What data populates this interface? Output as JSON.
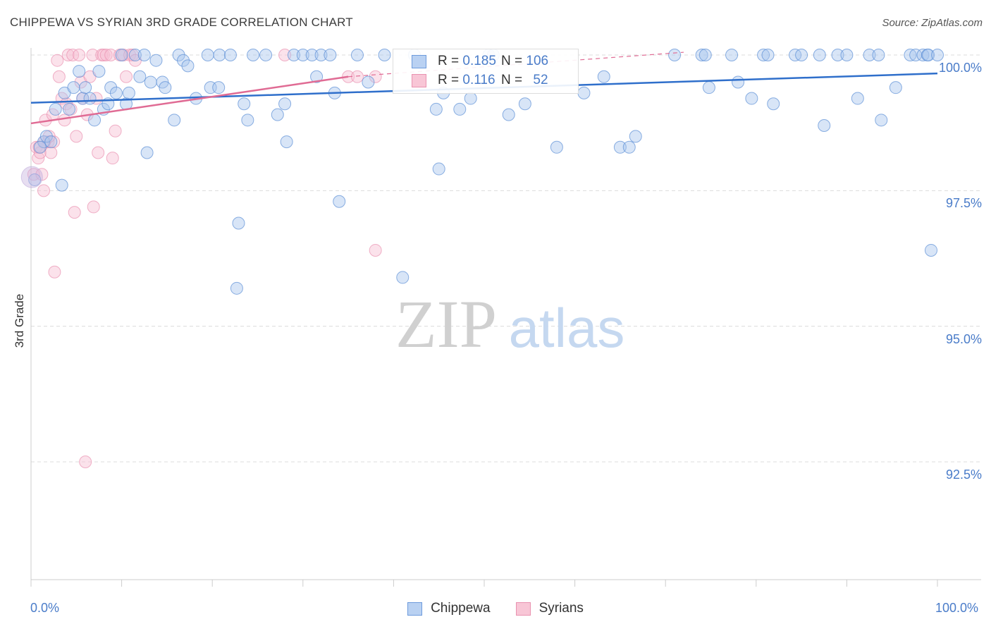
{
  "title": "CHIPPEWA VS SYRIAN 3RD GRADE CORRELATION CHART",
  "source": "Source: ZipAtlas.com",
  "watermark": {
    "zip": "ZIP",
    "atlas": "atlas"
  },
  "legend": {
    "chippewa": {
      "r_label": "R = ",
      "r_value": "0.185",
      "n_label": "N = ",
      "n_value": "106"
    },
    "syrians": {
      "r_label": "R = ",
      "r_value": "0.116",
      "n_label": "N = ",
      "n_value": "52"
    }
  },
  "bottom_legend": [
    "Chippewa",
    "Syrians"
  ],
  "colors": {
    "chippewa": "#5b8fd6",
    "chippewa_line": "#2f6fcb",
    "syrians": "#e992b0",
    "syrians_line": "#e06b94"
  },
  "chart_data": {
    "type": "scatter",
    "title": "CHIPPEWA VS SYRIAN 3RD GRADE CORRELATION CHART",
    "xlabel": "",
    "ylabel": "3rd Grade",
    "xlim": [
      0,
      100
    ],
    "ylim": [
      90.0,
      100.4
    ],
    "x_tick_labels": [
      "0.0%",
      "100.0%"
    ],
    "y_ticks": [
      92.5,
      95.0,
      97.5,
      100.0
    ],
    "y_tick_labels": [
      "92.5%",
      "95.0%",
      "97.5%",
      "100.0%"
    ],
    "grid": true,
    "legend_position": "top-center",
    "series": [
      {
        "name": "Chippewa",
        "r": 0.185,
        "n": 106,
        "trend": {
          "x": [
            0,
            100
          ],
          "y": [
            99.12,
            99.66
          ]
        },
        "points": [
          [
            0.4,
            97.7
          ],
          [
            1.4,
            98.4
          ],
          [
            1.7,
            98.5
          ],
          [
            2.2,
            98.4
          ],
          [
            2.7,
            99.0
          ],
          [
            3.4,
            97.6
          ],
          [
            3.7,
            99.3
          ],
          [
            4.2,
            99.0
          ],
          [
            4.7,
            99.4
          ],
          [
            5.3,
            99.7
          ],
          [
            5.7,
            99.2
          ],
          [
            6.0,
            99.4
          ],
          [
            6.5,
            99.2
          ],
          [
            7.0,
            98.8
          ],
          [
            7.5,
            99.7
          ],
          [
            8.0,
            99.0
          ],
          [
            8.5,
            99.1
          ],
          [
            8.8,
            99.4
          ],
          [
            9.4,
            99.3
          ],
          [
            10.0,
            100.0
          ],
          [
            10.5,
            99.1
          ],
          [
            10.8,
            99.3
          ],
          [
            11.5,
            100.0
          ],
          [
            12.0,
            99.6
          ],
          [
            12.5,
            100.0
          ],
          [
            12.8,
            98.2
          ],
          [
            13.2,
            99.5
          ],
          [
            13.8,
            99.9
          ],
          [
            14.5,
            99.5
          ],
          [
            14.8,
            99.4
          ],
          [
            15.8,
            98.8
          ],
          [
            16.3,
            100.0
          ],
          [
            16.8,
            99.9
          ],
          [
            17.3,
            99.8
          ],
          [
            18.2,
            99.2
          ],
          [
            19.5,
            100.0
          ],
          [
            19.8,
            99.4
          ],
          [
            20.7,
            99.4
          ],
          [
            20.8,
            100.0
          ],
          [
            22.0,
            100.0
          ],
          [
            22.7,
            95.7
          ],
          [
            22.9,
            96.9
          ],
          [
            23.5,
            99.1
          ],
          [
            24.5,
            100.0
          ],
          [
            23.9,
            98.8
          ],
          [
            25.9,
            100.0
          ],
          [
            27.2,
            98.9
          ],
          [
            28.0,
            99.1
          ],
          [
            28.2,
            98.4
          ],
          [
            29.0,
            100.0
          ],
          [
            30.0,
            100.0
          ],
          [
            31.0,
            100.0
          ],
          [
            31.5,
            99.6
          ],
          [
            32.0,
            100.0
          ],
          [
            33.0,
            100.0
          ],
          [
            33.5,
            99.3
          ],
          [
            34.0,
            97.3
          ],
          [
            36.0,
            100.0
          ],
          [
            37.2,
            99.5
          ],
          [
            39.0,
            100.0
          ],
          [
            41.0,
            95.9
          ],
          [
            42.3,
            100.0
          ],
          [
            44.7,
            99.0
          ],
          [
            45.0,
            97.9
          ],
          [
            45.5,
            99.3
          ],
          [
            47.3,
            99.0
          ],
          [
            48.5,
            99.2
          ],
          [
            50.5,
            100.0
          ],
          [
            51.0,
            100.0
          ],
          [
            52.7,
            98.9
          ],
          [
            54.5,
            99.1
          ],
          [
            58.0,
            98.3
          ],
          [
            61.0,
            99.3
          ],
          [
            63.2,
            99.6
          ],
          [
            65.0,
            98.3
          ],
          [
            66.0,
            98.3
          ],
          [
            66.7,
            98.5
          ],
          [
            71.0,
            100.0
          ],
          [
            74.0,
            100.0
          ],
          [
            74.4,
            100.0
          ],
          [
            74.8,
            99.4
          ],
          [
            77.3,
            100.0
          ],
          [
            78.0,
            99.5
          ],
          [
            79.5,
            99.2
          ],
          [
            80.8,
            100.0
          ],
          [
            81.3,
            100.0
          ],
          [
            81.9,
            99.1
          ],
          [
            84.3,
            100.0
          ],
          [
            85.0,
            100.0
          ],
          [
            87.0,
            100.0
          ],
          [
            87.5,
            98.7
          ],
          [
            89.0,
            100.0
          ],
          [
            90.0,
            100.0
          ],
          [
            91.2,
            99.2
          ],
          [
            92.5,
            100.0
          ],
          [
            93.5,
            100.0
          ],
          [
            93.8,
            98.8
          ],
          [
            95.4,
            99.4
          ],
          [
            97.0,
            100.0
          ],
          [
            97.6,
            100.0
          ],
          [
            98.4,
            100.0
          ],
          [
            98.9,
            100.0
          ],
          [
            99.0,
            100.0
          ],
          [
            99.3,
            96.4
          ],
          [
            100.0,
            100.0
          ],
          [
            1.0,
            98.3
          ]
        ]
      },
      {
        "name": "Syrians",
        "r": 0.116,
        "n": 52,
        "trend": {
          "x": [
            0,
            35
          ],
          "y": [
            98.74,
            99.6
          ]
        },
        "trend_dashed": {
          "x": [
            35,
            72
          ],
          "y": [
            99.6,
            100.05
          ]
        },
        "points": [
          [
            0.3,
            97.8
          ],
          [
            0.6,
            98.3
          ],
          [
            0.8,
            98.1
          ],
          [
            1.0,
            98.2
          ],
          [
            1.2,
            97.8
          ],
          [
            1.4,
            97.5
          ],
          [
            1.6,
            98.8
          ],
          [
            1.9,
            98.4
          ],
          [
            2.2,
            98.2
          ],
          [
            2.5,
            98.4
          ],
          [
            2.6,
            96.0
          ],
          [
            2.9,
            99.9
          ],
          [
            3.1,
            99.6
          ],
          [
            3.4,
            99.2
          ],
          [
            3.7,
            98.8
          ],
          [
            3.9,
            99.1
          ],
          [
            4.1,
            100.0
          ],
          [
            4.4,
            99.0
          ],
          [
            4.6,
            100.0
          ],
          [
            4.8,
            97.1
          ],
          [
            5.0,
            98.5
          ],
          [
            5.3,
            100.0
          ],
          [
            5.5,
            99.5
          ],
          [
            5.7,
            99.2
          ],
          [
            6.0,
            92.5
          ],
          [
            6.2,
            98.9
          ],
          [
            6.5,
            99.6
          ],
          [
            6.8,
            100.0
          ],
          [
            6.9,
            97.2
          ],
          [
            7.2,
            99.2
          ],
          [
            7.4,
            98.2
          ],
          [
            7.8,
            100.0
          ],
          [
            8.0,
            100.0
          ],
          [
            8.3,
            100.0
          ],
          [
            8.8,
            100.0
          ],
          [
            9.0,
            98.1
          ],
          [
            9.3,
            98.6
          ],
          [
            9.8,
            100.0
          ],
          [
            10.2,
            100.0
          ],
          [
            10.5,
            99.6
          ],
          [
            10.9,
            100.0
          ],
          [
            11.2,
            100.0
          ],
          [
            11.5,
            99.9
          ],
          [
            0.9,
            98.3
          ],
          [
            1.5,
            98.4
          ],
          [
            2.0,
            98.5
          ],
          [
            2.4,
            98.9
          ],
          [
            28.0,
            100.0
          ],
          [
            35.0,
            99.6
          ],
          [
            36.0,
            99.6
          ],
          [
            38.0,
            99.6
          ],
          [
            38.0,
            96.4
          ]
        ]
      }
    ]
  }
}
